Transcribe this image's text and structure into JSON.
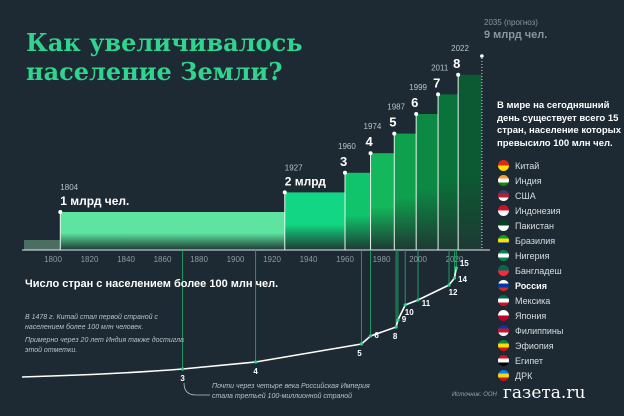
{
  "title_line1": "Как увеличивалось",
  "title_line2": "население Земли?",
  "forecast": {
    "year_label": "2035 (прогноз)",
    "value_label": "9 млрд чел."
  },
  "aside": "В мире на сегодняшний день существует всего 15 стран, население которых превысило 100 млн чел.",
  "subhead": "Число стран с населением более 100 млн чел.",
  "note_china": "В 1478 г. Китай стал первой страной с населением более 100 млн человек.",
  "note_india": "Примерно через 20 лет Индия также достигла этой отметки.",
  "note_russia": "Почти через четыре века Российская Империя стала третьей 100-миллионной страной",
  "source": "Источник: ООН",
  "logo": "газета.ru",
  "countries": [
    {
      "name": "Китай",
      "colors": [
        "#de2910",
        "#ffde00"
      ]
    },
    {
      "name": "Индия",
      "colors": [
        "#ff9933",
        "#ffffff",
        "#138808"
      ]
    },
    {
      "name": "США",
      "colors": [
        "#3c3b6e",
        "#b22234",
        "#ffffff"
      ]
    },
    {
      "name": "Индонезия",
      "colors": [
        "#ce1126",
        "#ffffff"
      ]
    },
    {
      "name": "Пакистан",
      "colors": [
        "#01411c",
        "#ffffff"
      ]
    },
    {
      "name": "Бразилия",
      "colors": [
        "#009c3b",
        "#ffdf00",
        "#002776"
      ]
    },
    {
      "name": "Нигерия",
      "colors": [
        "#008751",
        "#ffffff",
        "#008751"
      ]
    },
    {
      "name": "Бангладеш",
      "colors": [
        "#006a4e",
        "#f42a41"
      ]
    },
    {
      "name": "Россия",
      "colors": [
        "#ffffff",
        "#0039a6",
        "#d52b1e"
      ],
      "bold": true
    },
    {
      "name": "Мексика",
      "colors": [
        "#006847",
        "#ffffff",
        "#ce1126"
      ]
    },
    {
      "name": "Япония",
      "colors": [
        "#ffffff",
        "#bc002d"
      ]
    },
    {
      "name": "Филиппины",
      "colors": [
        "#0038a8",
        "#ce1126",
        "#ffffff"
      ]
    },
    {
      "name": "Эфиопия",
      "colors": [
        "#078930",
        "#fcdd09",
        "#da121a"
      ]
    },
    {
      "name": "Египет",
      "colors": [
        "#ce1126",
        "#ffffff",
        "#000000"
      ]
    },
    {
      "name": "ДРК",
      "colors": [
        "#007fff",
        "#f7d618",
        "#ce1021"
      ]
    }
  ],
  "chart_data": [
    {
      "type": "bar",
      "title": "Население Земли",
      "x_ticks": [
        "1800",
        "1820",
        "1840",
        "1860",
        "1880",
        "1900",
        "1920",
        "1940",
        "1960",
        "1980",
        "2000",
        "2020"
      ],
      "xlim": [
        1788,
        2040
      ],
      "steps": [
        {
          "year": 1804,
          "value": 1,
          "label": "1 млрд чел."
        },
        {
          "year": 1927,
          "value": 2,
          "label": "2 млрд"
        },
        {
          "year": 1960,
          "value": 3,
          "label": "3"
        },
        {
          "year": 1974,
          "value": 4,
          "label": "4"
        },
        {
          "year": 1987,
          "value": 5,
          "label": "5"
        },
        {
          "year": 1999,
          "value": 6,
          "label": "6"
        },
        {
          "year": 2011,
          "value": 7,
          "label": "7"
        },
        {
          "year": 2022,
          "value": 8,
          "label": "8"
        }
      ],
      "forecast": {
        "year": 2035,
        "value": 9
      },
      "unit": "млрд"
    },
    {
      "type": "line",
      "title": "Число стран с населением более 100 млн чел.",
      "points": [
        {
          "year": 1871,
          "value": 3
        },
        {
          "year": 1911,
          "value": 4
        },
        {
          "year": 1969,
          "value": 5
        },
        {
          "year": 1974,
          "value": 6
        },
        {
          "year": 1988,
          "value": 8
        },
        {
          "year": 1989,
          "value": 9
        },
        {
          "year": 1993,
          "value": 10
        },
        {
          "year": 2000,
          "value": 11
        },
        {
          "year": 2017,
          "value": 12
        },
        {
          "year": 2020,
          "value": 14
        },
        {
          "year": 2021,
          "value": 15
        }
      ]
    }
  ]
}
